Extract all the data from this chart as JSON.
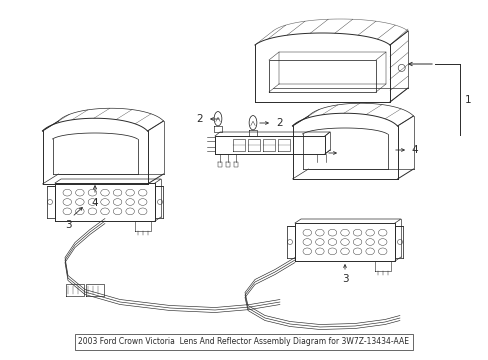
{
  "background_color": "#ffffff",
  "line_color": "#2a2a2a",
  "fig_width": 4.89,
  "fig_height": 3.6,
  "dpi": 100,
  "label_fontsize": 7.5,
  "title": "2003 Ford Crown Victoria  Lens And Reflector Assembly Diagram for 3W7Z-13434-AAE"
}
